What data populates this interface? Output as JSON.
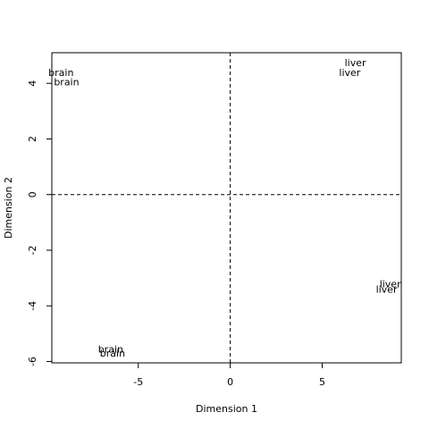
{
  "chart_data": {
    "type": "scatter",
    "xlabel": "Dimension 1",
    "ylabel": "Dimension 2",
    "xlim": [
      -9.7,
      9.3
    ],
    "ylim": [
      -6.05,
      5.1
    ],
    "x_ticks": [
      -5,
      0,
      5
    ],
    "y_ticks": [
      -6,
      -4,
      -2,
      0,
      2,
      4
    ],
    "x_tick_labels": [
      "-5",
      "0",
      "5"
    ],
    "y_tick_labels": [
      "-6",
      "-4",
      "-2",
      "0",
      "2",
      "4"
    ],
    "reference_lines": {
      "x": 0,
      "y": 0,
      "style": "dashed"
    },
    "grid": false,
    "points": [
      {
        "label": "brain",
        "x": -9.2,
        "y": 4.4
      },
      {
        "label": "brain",
        "x": -8.9,
        "y": 4.05
      },
      {
        "label": "liver",
        "x": 6.8,
        "y": 4.75
      },
      {
        "label": "liver",
        "x": 6.5,
        "y": 4.4
      },
      {
        "label": "liver",
        "x": 8.7,
        "y": -3.2
      },
      {
        "label": "liver",
        "x": 8.5,
        "y": -3.4
      },
      {
        "label": "brain",
        "x": -6.5,
        "y": -5.55
      },
      {
        "label": "brain",
        "x": -6.4,
        "y": -5.7
      }
    ]
  }
}
